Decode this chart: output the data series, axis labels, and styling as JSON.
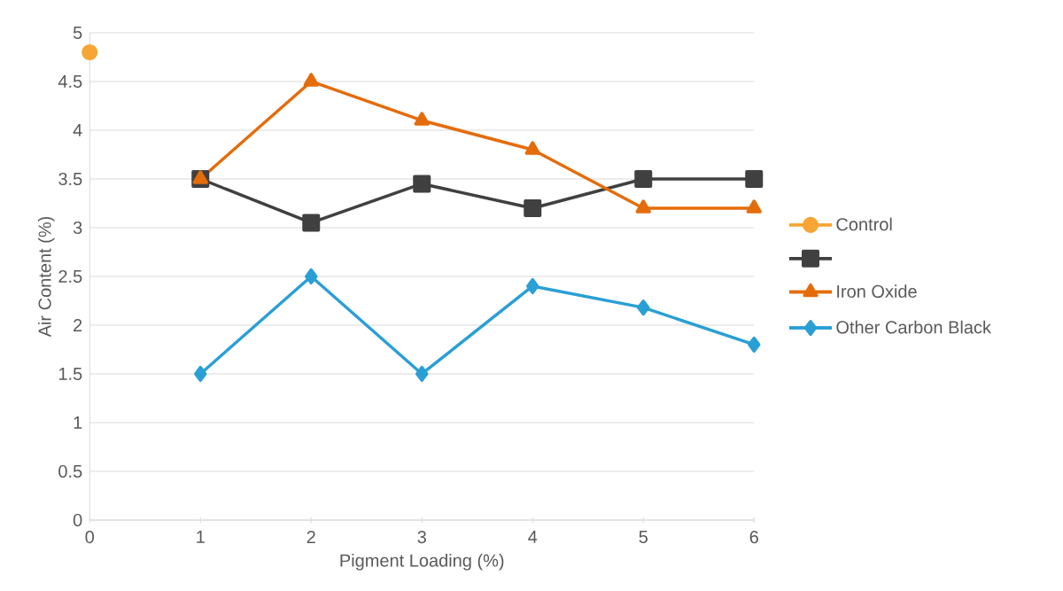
{
  "chart_data": {
    "type": "line",
    "xlabel": "Pigment Loading (%)",
    "ylabel": "Air Content (%)",
    "x": [
      1,
      2,
      3,
      4,
      5,
      6
    ],
    "series": [
      {
        "name": "Control",
        "color": "#f7a535",
        "marker": "circle",
        "x": [
          0
        ],
        "values": [
          4.8
        ]
      },
      {
        "color": "#404040",
        "marker": "square",
        "values": [
          3.5,
          3.05,
          3.45,
          3.2,
          3.5,
          3.5
        ]
      },
      {
        "name": "Iron Oxide",
        "color": "#e46c0a",
        "marker": "triangle",
        "values": [
          3.5,
          4.5,
          4.1,
          3.8,
          3.2,
          3.2
        ]
      },
      {
        "name": "Other Carbon Black",
        "color": "#2a9fd6",
        "marker": "diamond",
        "values": [
          1.5,
          2.5,
          1.5,
          2.4,
          2.18,
          1.8
        ]
      }
    ],
    "xlim": [
      0,
      6
    ],
    "xticks": [
      0,
      1,
      2,
      3,
      4,
      5,
      6
    ],
    "ylim": [
      0,
      5
    ],
    "yticks": [
      0,
      0.5,
      1,
      1.5,
      2,
      2.5,
      3,
      3.5,
      4,
      4.5,
      5
    ],
    "grid": "y",
    "legend": "right",
    "line_style": "solid"
  }
}
